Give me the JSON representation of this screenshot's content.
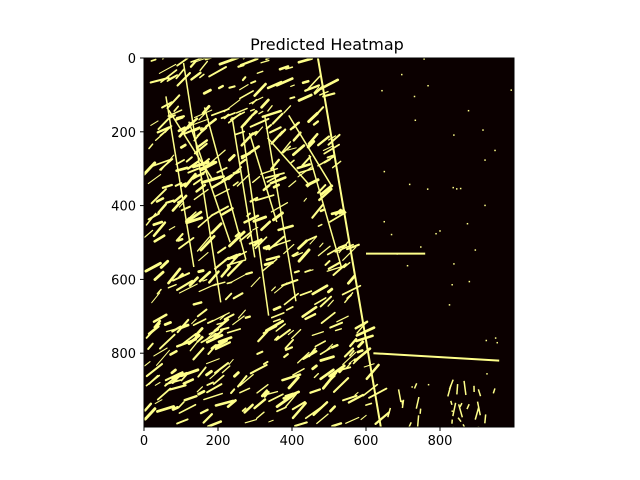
{
  "chart_data": {
    "type": "heatmap",
    "title": "Predicted Heatmap",
    "xlabel": "",
    "ylabel": "",
    "xlim": [
      0,
      1000
    ],
    "ylim": [
      1000,
      0
    ],
    "xticks": [
      0,
      200,
      400,
      600,
      800
    ],
    "yticks": [
      0,
      200,
      400,
      600,
      800
    ],
    "colormap": {
      "low": "#0b0000",
      "high": "#ffff8a"
    },
    "value_range": [
      0,
      1
    ],
    "grid": false,
    "description_of_values": "binary prediction map: dense diagonal streaks (value 1) over the left ~55% of the image, mostly 0 on the right with a few thin lines",
    "features": [
      {
        "label": "diagonal edge",
        "x": [
          470,
          640
        ],
        "y": [
          0,
          1000
        ]
      },
      {
        "label": "horizontal line upper",
        "x": [
          600,
          760
        ],
        "y": [
          530,
          530
        ]
      },
      {
        "label": "horizontal line lower",
        "x": [
          620,
          960
        ],
        "y": [
          800,
          820
        ]
      }
    ]
  }
}
